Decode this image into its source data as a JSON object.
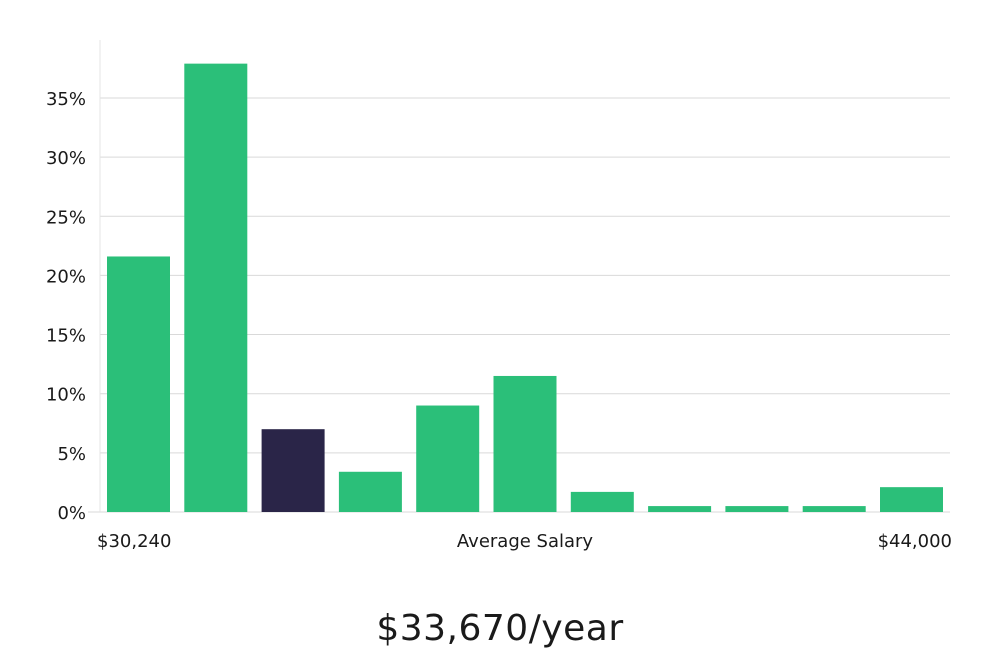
{
  "chart_data": {
    "type": "bar",
    "title": "",
    "xlabel": "Average Salary",
    "ylabel": "",
    "x_range_labels": {
      "min": "$30,240",
      "max": "$44,000"
    },
    "y_ticks": [
      0,
      5,
      10,
      15,
      20,
      25,
      30,
      35
    ],
    "y_tick_labels": [
      "0%",
      "5%",
      "10%",
      "15%",
      "20%",
      "25%",
      "30%",
      "35%"
    ],
    "ylim": [
      0,
      40
    ],
    "grid": true,
    "values": [
      21.6,
      37.9,
      7.0,
      3.4,
      9.0,
      11.5,
      1.7,
      0.5,
      0.5,
      0.5,
      2.1
    ],
    "highlight_index": 2,
    "colors": {
      "bar": "#2bbf79",
      "highlight": "#2a2548",
      "grid": "#d9d9d9",
      "axis": "#e4e4e4"
    }
  },
  "summary": {
    "salary_text": "$33,670/year"
  }
}
